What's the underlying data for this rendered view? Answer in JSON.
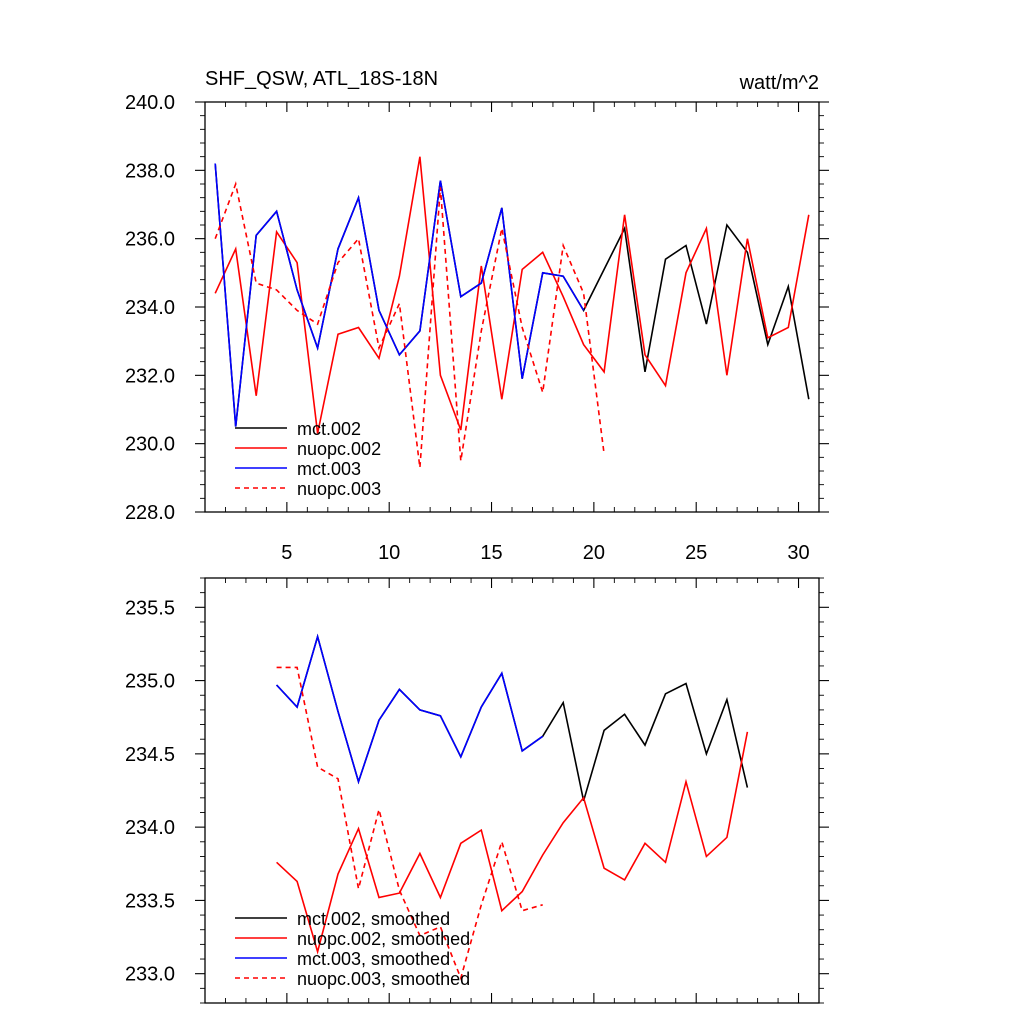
{
  "chart_data": [
    {
      "type": "line",
      "title": "SHF_QSW, ATL_18S-18N",
      "units": "watt/m^2",
      "xlim": [
        1,
        31
      ],
      "ylim": [
        228,
        240
      ],
      "xticks": [
        5,
        10,
        15,
        20,
        25,
        30
      ],
      "xtick_labels": [
        "5",
        "10",
        "15",
        "20",
        "25",
        "30"
      ],
      "yticks": [
        228,
        230,
        232,
        234,
        236,
        238,
        240
      ],
      "ytick_labels": [
        "228.0",
        "230.0",
        "232.0",
        "234.0",
        "236.0",
        "238.0",
        "240.0"
      ],
      "legend_position": "bottom-left",
      "series": [
        {
          "name": "mct.002",
          "color": "#000000",
          "dash": "solid",
          "x": [
            1.5,
            2.5,
            3.5,
            4.5,
            5.5,
            6.5,
            7.5,
            8.5,
            9.5,
            10.5,
            11.5,
            12.5,
            13.5,
            14.5,
            15.5,
            16.5,
            17.5,
            18.5,
            19.5,
            20.5,
            21.5,
            22.5,
            23.5,
            24.5,
            25.5,
            26.5,
            27.5,
            28.5,
            29.5,
            30.5
          ],
          "values": [
            238.2,
            230.5,
            236.1,
            236.8,
            234.5,
            232.8,
            235.7,
            237.2,
            233.9,
            232.6,
            233.3,
            237.7,
            234.3,
            234.7,
            236.9,
            231.9,
            235.0,
            234.9,
            233.9,
            235.1,
            236.3,
            232.1,
            235.4,
            235.8,
            233.5,
            236.4,
            235.6,
            232.9,
            234.6,
            231.3
          ]
        },
        {
          "name": "nuopc.002",
          "color": "#ff0000",
          "dash": "solid",
          "x": [
            1.5,
            2.5,
            3.5,
            4.5,
            5.5,
            6.5,
            7.5,
            8.5,
            9.5,
            10.5,
            11.5,
            12.5,
            13.5,
            14.5,
            15.5,
            16.5,
            17.5,
            18.5,
            19.5,
            20.5,
            21.5,
            22.5,
            23.5,
            24.5,
            25.5,
            26.5,
            27.5,
            28.5,
            29.5,
            30.5
          ],
          "values": [
            234.4,
            235.7,
            231.4,
            236.2,
            235.3,
            230.3,
            233.2,
            233.4,
            232.5,
            234.9,
            238.4,
            232.0,
            230.4,
            235.2,
            231.3,
            235.1,
            235.6,
            234.3,
            232.9,
            232.1,
            236.7,
            232.6,
            231.7,
            235.0,
            236.3,
            232.0,
            236.0,
            233.1,
            233.4,
            236.7
          ]
        },
        {
          "name": "mct.003",
          "color": "#0000ff",
          "dash": "solid",
          "x": [
            1.5,
            2.5,
            3.5,
            4.5,
            5.5,
            6.5,
            7.5,
            8.5,
            9.5,
            10.5,
            11.5,
            12.5,
            13.5,
            14.5,
            15.5,
            16.5,
            17.5,
            18.5,
            19.5
          ],
          "values": [
            238.2,
            230.5,
            236.1,
            236.8,
            234.5,
            232.8,
            235.7,
            237.2,
            233.9,
            232.6,
            233.3,
            237.7,
            234.3,
            234.7,
            236.9,
            231.9,
            235.0,
            234.9,
            233.9
          ]
        },
        {
          "name": "nuopc.003",
          "color": "#ff0000",
          "dash": "dashed",
          "x": [
            1.5,
            2.5,
            3.5,
            4.5,
            5.5,
            6.5,
            7.5,
            8.5,
            9.5,
            10.5,
            11.5,
            12.5,
            13.5,
            14.5,
            15.5,
            16.5,
            17.5,
            18.5,
            19.5,
            20.5
          ],
          "values": [
            236.0,
            237.6,
            234.7,
            234.5,
            233.9,
            233.5,
            235.3,
            236.0,
            232.8,
            234.1,
            229.3,
            237.5,
            229.5,
            233.3,
            236.3,
            233.4,
            231.5,
            235.8,
            234.4,
            229.7
          ]
        }
      ]
    },
    {
      "type": "line",
      "title": "",
      "xlim": [
        1,
        31
      ],
      "ylim": [
        232.8,
        235.7
      ],
      "xticks": [
        5,
        10,
        15,
        20,
        25,
        30
      ],
      "xtick_labels": [],
      "yticks": [
        233.0,
        233.5,
        234.0,
        234.5,
        235.0,
        235.5
      ],
      "ytick_labels": [
        "233.0",
        "233.5",
        "234.0",
        "234.5",
        "235.0",
        "235.5"
      ],
      "legend_position": "bottom-left",
      "series": [
        {
          "name": "mct.002, smoothed",
          "color": "#000000",
          "dash": "solid",
          "x": [
            4.5,
            5.5,
            6.5,
            7.5,
            8.5,
            9.5,
            10.5,
            11.5,
            12.5,
            13.5,
            14.5,
            15.5,
            16.5,
            17.5,
            18.5,
            19.5,
            20.5,
            21.5,
            22.5,
            23.5,
            24.5,
            25.5,
            26.5,
            27.5
          ],
          "values": [
            234.97,
            234.82,
            235.3,
            234.79,
            234.31,
            234.73,
            234.94,
            234.8,
            234.76,
            234.48,
            234.82,
            235.05,
            234.52,
            234.62,
            234.85,
            234.18,
            234.66,
            234.77,
            234.56,
            234.91,
            234.98,
            234.5,
            234.87,
            234.27
          ]
        },
        {
          "name": "nuopc.002, smoothed",
          "color": "#ff0000",
          "dash": "solid",
          "x": [
            4.5,
            5.5,
            6.5,
            7.5,
            8.5,
            9.5,
            10.5,
            11.5,
            12.5,
            13.5,
            14.5,
            15.5,
            16.5,
            17.5,
            18.5,
            19.5,
            20.5,
            21.5,
            22.5,
            23.5,
            24.5,
            25.5,
            26.5,
            27.5
          ],
          "values": [
            233.76,
            233.63,
            233.15,
            233.68,
            233.99,
            233.52,
            233.55,
            233.82,
            233.52,
            233.89,
            233.98,
            233.43,
            233.56,
            233.81,
            234.03,
            234.2,
            233.72,
            233.64,
            233.89,
            233.76,
            234.31,
            233.8,
            233.93,
            234.65
          ]
        },
        {
          "name": "mct.003, smoothed",
          "color": "#0000ff",
          "dash": "solid",
          "x": [
            4.5,
            5.5,
            6.5,
            7.5,
            8.5,
            9.5,
            10.5,
            11.5,
            12.5,
            13.5,
            14.5,
            15.5,
            16.5,
            17.5
          ],
          "values": [
            234.97,
            234.82,
            235.3,
            234.79,
            234.31,
            234.73,
            234.94,
            234.8,
            234.76,
            234.48,
            234.82,
            235.05,
            234.52,
            234.62
          ]
        },
        {
          "name": "nuopc.003, smoothed",
          "color": "#ff0000",
          "dash": "dashed",
          "x": [
            4.5,
            5.5,
            6.5,
            7.5,
            8.5,
            9.5,
            10.5,
            11.5,
            12.5,
            13.5,
            14.5,
            15.5,
            16.5,
            17.5
          ],
          "values": [
            235.09,
            235.09,
            234.41,
            234.33,
            233.58,
            234.12,
            233.57,
            233.26,
            233.32,
            232.97,
            233.47,
            233.9,
            233.43,
            233.47
          ]
        }
      ]
    }
  ]
}
